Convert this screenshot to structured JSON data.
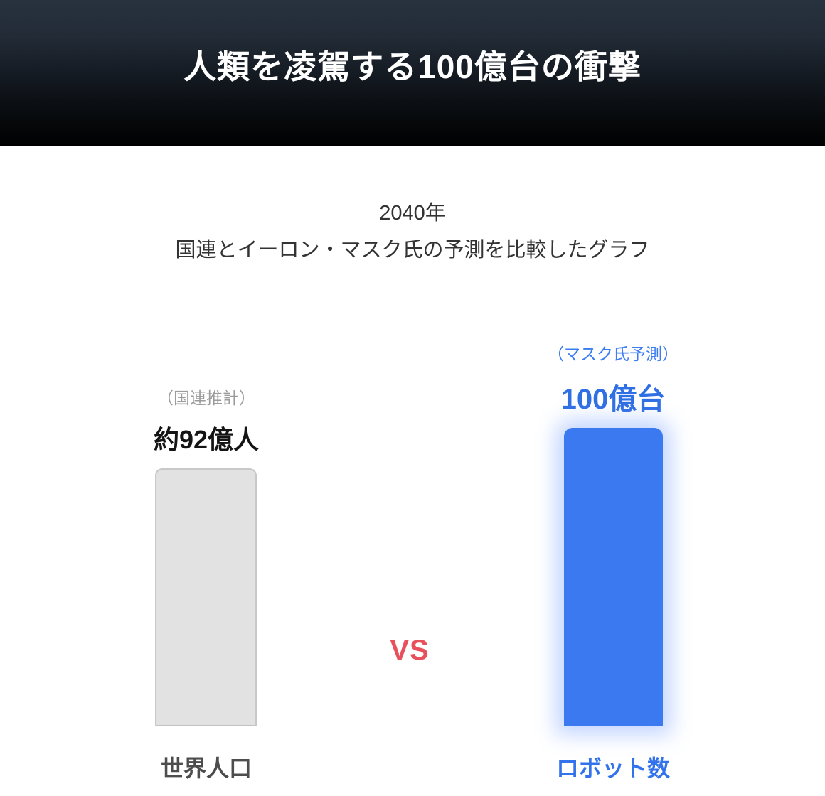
{
  "header": {
    "title": "人類を凌駕する100億台の衝撃"
  },
  "subtitle": {
    "year": "2040年",
    "description": "国連とイーロン・マスク氏の予測を比較したグラフ"
  },
  "comparison": {
    "vs_label": "VS",
    "left": {
      "note": "（国連推計）",
      "value": "約92億人",
      "label": "世界人口"
    },
    "right": {
      "note": "（マスク氏予測）",
      "value": "100億台",
      "label": "ロボット数"
    }
  },
  "colors": {
    "header_gradient_top": "#28323e",
    "header_gradient_bottom": "#000000",
    "title_text": "#ffffff",
    "subtitle_text": "#333333",
    "note_gray": "#9c9c9c",
    "value_black": "#141414",
    "label_gray": "#4d4d4d",
    "bar_gray_fill": "#e2e2e2",
    "bar_gray_border": "#c8c8c8",
    "accent_blue_text": "#3273eb",
    "bar_blue_fill": "#3b79f0",
    "vs_red": "#e8515c"
  },
  "chart_data": {
    "type": "bar",
    "title": "人類を凌駕する100億台の衝撃",
    "subtitle": "2040年 国連とイーロン・マスク氏の予測を比較したグラフ",
    "categories": [
      "世界人口",
      "ロボット数"
    ],
    "values": [
      92,
      100
    ],
    "unit": "億",
    "value_labels": [
      "約92億人",
      "100億台"
    ],
    "source_notes": [
      "（国連推計）",
      "（マスク氏予測）"
    ],
    "separator_annotation": "VS",
    "bar_colors": [
      "#e2e2e2",
      "#3b79f0"
    ],
    "xlabel": "",
    "ylabel": "",
    "ylim": [
      0,
      110
    ],
    "grid": false,
    "legend": false,
    "axes_visible": false
  }
}
